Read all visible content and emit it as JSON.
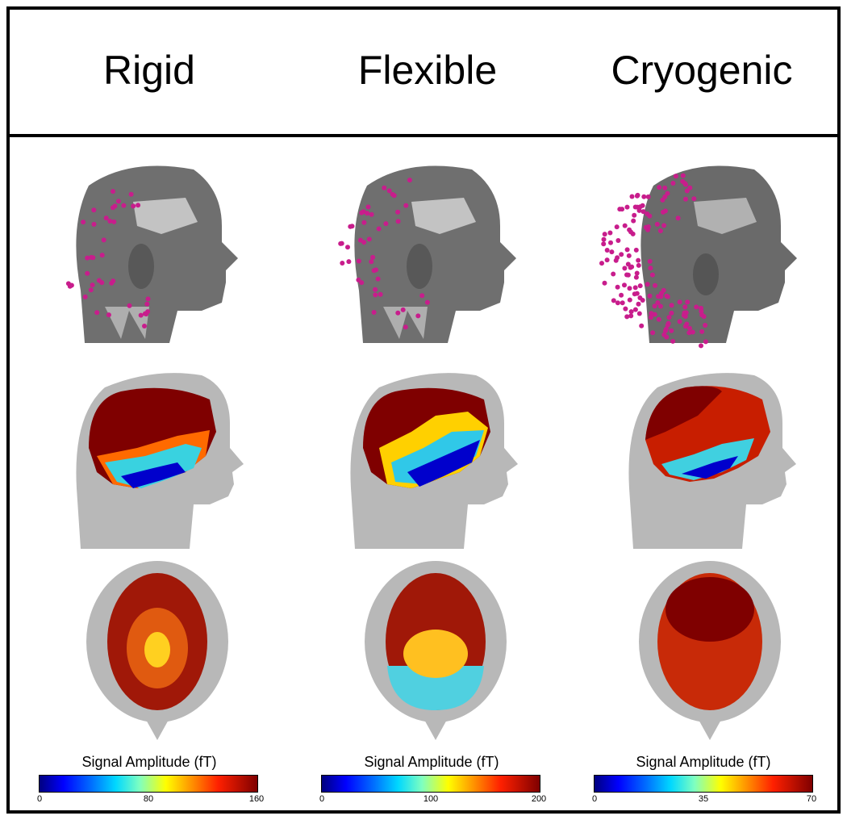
{
  "columns": [
    {
      "title": "Rigid",
      "colorbar": {
        "label": "Signal Amplitude (fT)",
        "ticks": [
          "0",
          "80",
          "160"
        ]
      }
    },
    {
      "title": "Flexible",
      "colorbar": {
        "label": "Signal Amplitude (fT)",
        "ticks": [
          "0",
          "100",
          "200"
        ]
      }
    },
    {
      "title": "Cryogenic",
      "colorbar": {
        "label": "Signal Amplitude (fT)",
        "ticks": [
          "0",
          "35",
          "70"
        ]
      }
    }
  ],
  "colors": {
    "sensor_dot": "#c81d8c",
    "head_mesh": "#6f6f6f",
    "head_silhouette": "#b8b8b8",
    "map_high": "#7f0000",
    "map_low": "#0000cc"
  }
}
